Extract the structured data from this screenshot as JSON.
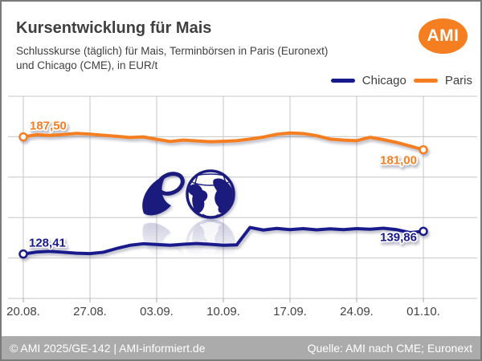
{
  "header": {
    "title": "Kursentwicklung für Mais",
    "subtitle_line1": "Schlusskurse (täglich) für Mais, Terminbörsen in Paris (Euronext)",
    "subtitle_line2": "und Chicago (CME), in EUR/t",
    "logo_text": "AMI"
  },
  "colors": {
    "chicago_navy": "#191a8c",
    "paris_orange": "#f57e20",
    "logo_orange": "#f57e20",
    "grid": "#c6c6c6",
    "axis": "#a8a8a8",
    "text": "#3f3f3f",
    "footer_bg": "#ababab",
    "footer_text": "#ffffff",
    "watermark_navy": "#1b1b7e"
  },
  "chart_data": {
    "type": "line",
    "title": "Kursentwicklung für Mais",
    "ylabel": "EUR/t",
    "xlabel": "",
    "grid": true,
    "legend_position": "top-right",
    "ylim": [
      106,
      208
    ],
    "x": [
      "20.08.",
      "21.08.",
      "22.08.",
      "25.08.",
      "26.08.",
      "27.08.",
      "28.08.",
      "29.08.",
      "01.09.",
      "02.09.",
      "03.09.",
      "04.09.",
      "05.09.",
      "08.09.",
      "09.09.",
      "10.09.",
      "11.09.",
      "12.09.",
      "15.09.",
      "16.09.",
      "17.09.",
      "18.09.",
      "19.09.",
      "22.09.",
      "23.09.",
      "24.09.",
      "25.09.",
      "26.09.",
      "29.09.",
      "30.09.",
      "01.10."
    ],
    "tick_indices": [
      0,
      5,
      10,
      15,
      20,
      25,
      30
    ],
    "tick_labels": [
      "20.08.",
      "27.08.",
      "03.09.",
      "10.09.",
      "17.09.",
      "24.09.",
      "01.10."
    ],
    "series": [
      {
        "name": "Chicago",
        "color": "#191a8c",
        "first_label": "128,41",
        "last_label": "139,86",
        "values": [
          128.41,
          129.4,
          129.8,
          129.3,
          128.8,
          128.6,
          129.3,
          131.2,
          132.8,
          133.6,
          133.2,
          132.8,
          133.3,
          133.7,
          133.3,
          132.8,
          133.0,
          141.8,
          140.5,
          141.3,
          140.7,
          141.2,
          140.6,
          141.1,
          140.7,
          141.2,
          140.9,
          141.4,
          140.7,
          139.2,
          139.86
        ]
      },
      {
        "name": "Paris",
        "color": "#f57e20",
        "first_label": "187,50",
        "last_label": "181,00",
        "values": [
          187.5,
          188.6,
          188.2,
          188.7,
          189.3,
          188.9,
          188.3,
          187.8,
          187.2,
          187.5,
          186.3,
          185.2,
          185.9,
          185.5,
          185.1,
          185.3,
          185.6,
          186.4,
          187.4,
          188.8,
          189.5,
          189.2,
          188.1,
          186.4,
          185.9,
          185.6,
          187.3,
          186.1,
          184.7,
          182.9,
          181.0
        ]
      }
    ]
  },
  "footer": {
    "left": "© AMI 2025/GE-142 | AMI-informiert.de",
    "right": "Quelle: AMI nach CME; Euronext"
  }
}
